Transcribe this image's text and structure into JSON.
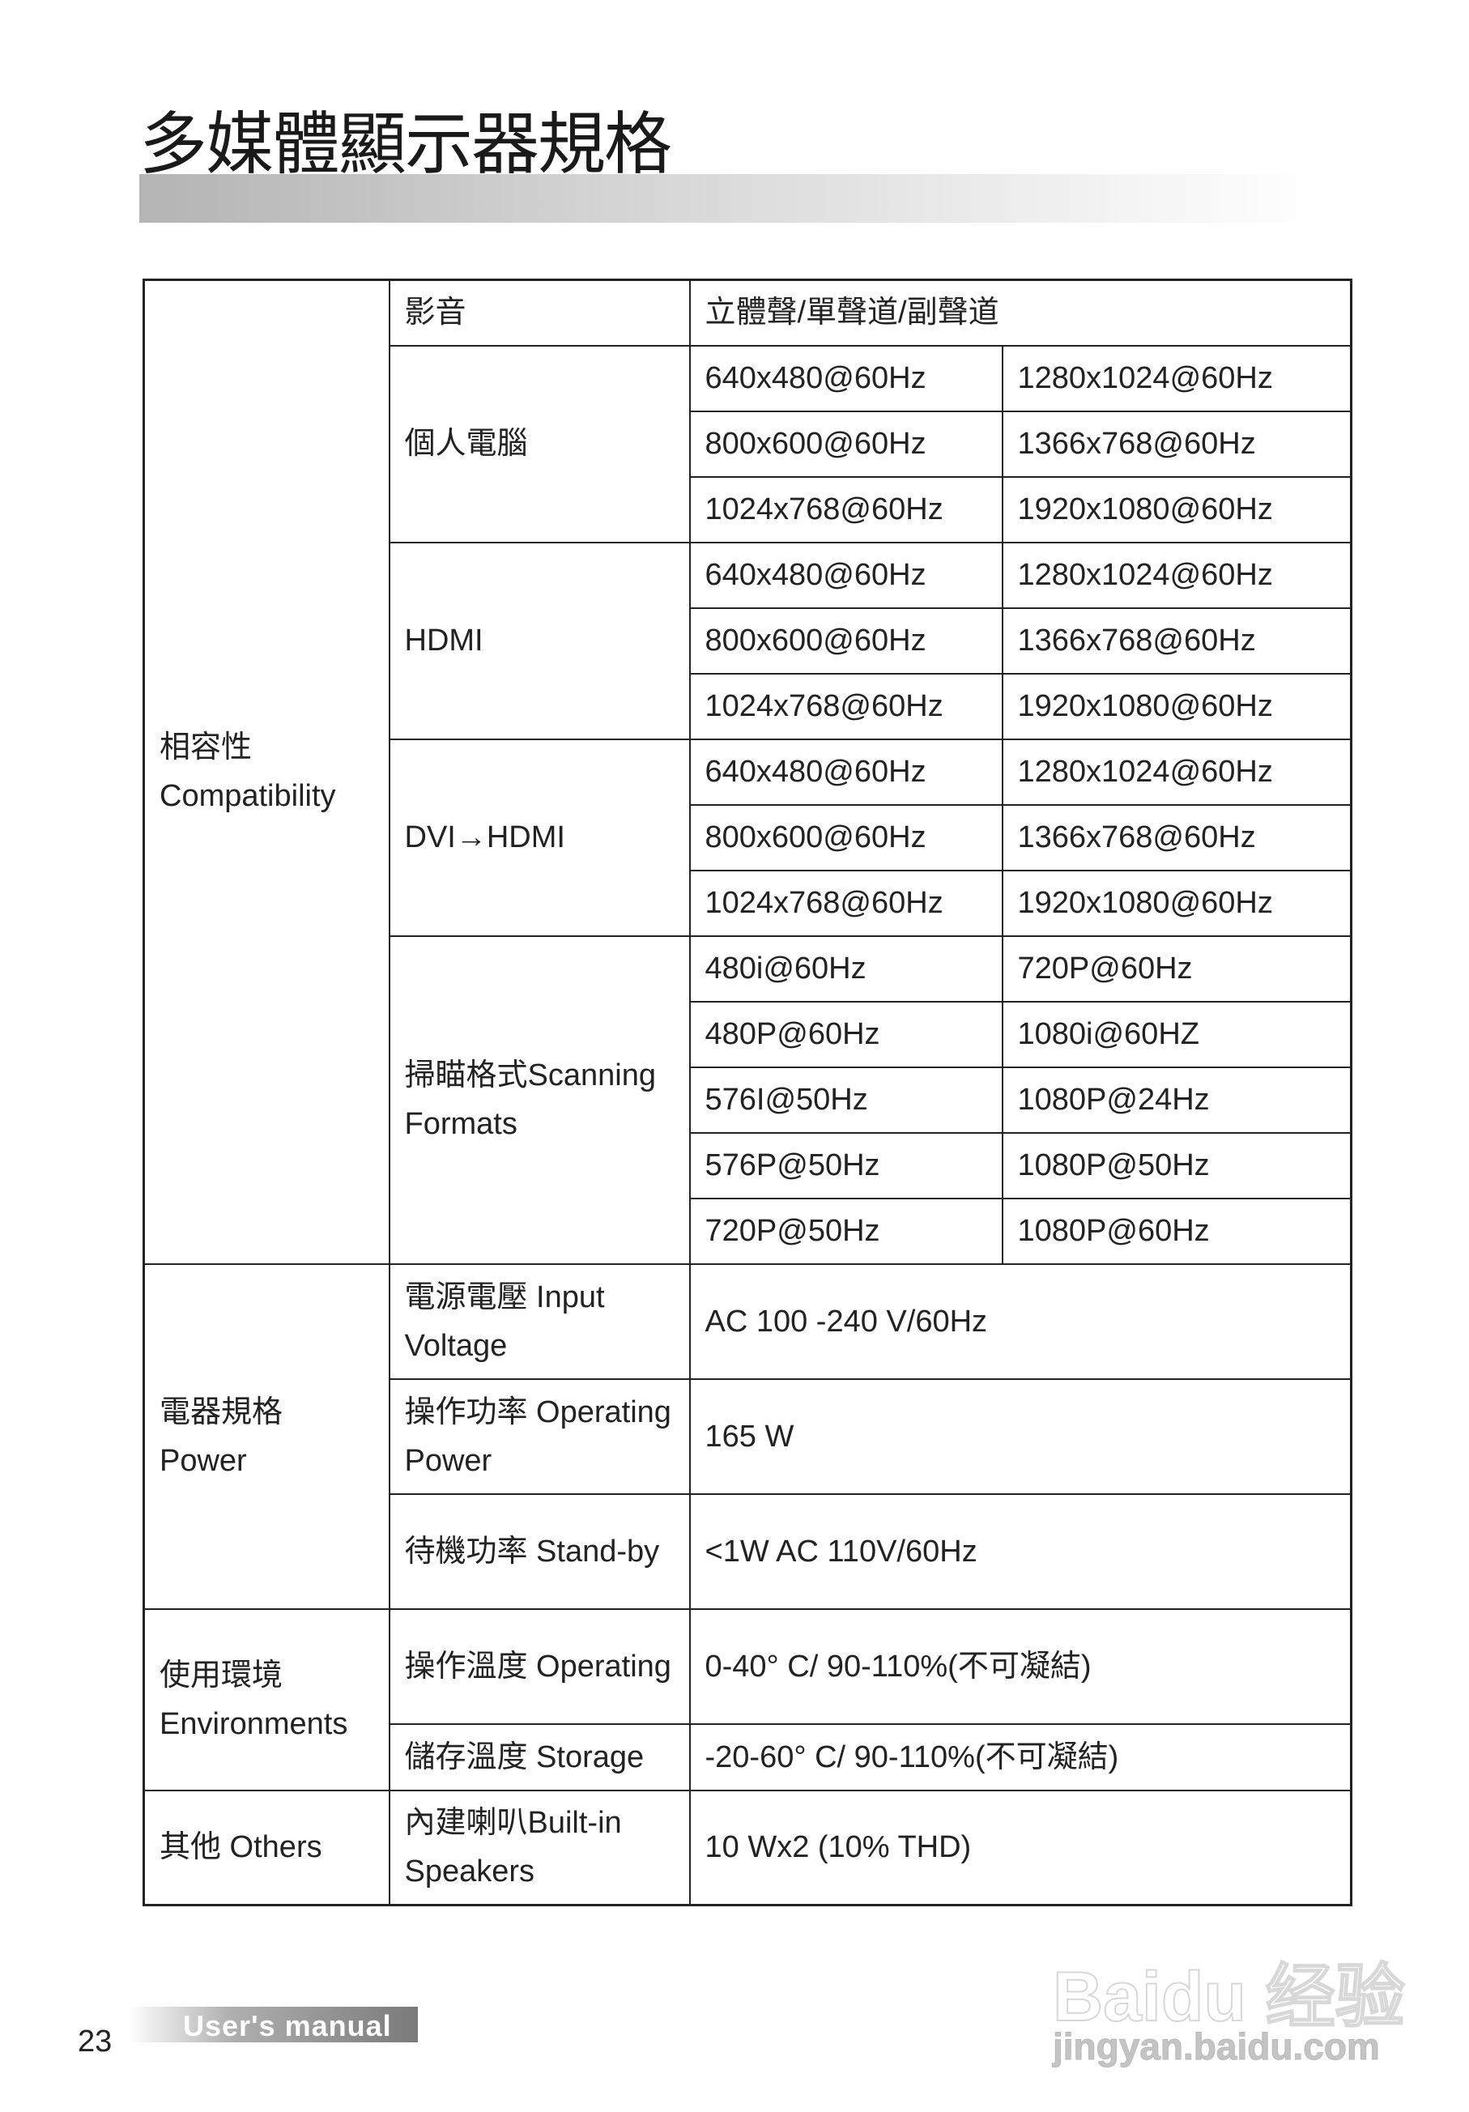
{
  "title": "多媒體顯示器規格",
  "table": {
    "compat_label": [
      "相容性",
      "Compatibility"
    ],
    "audio": {
      "label": "影音",
      "value": "立體聲/單聲道/副聲道"
    },
    "groups": [
      {
        "label": "個人電腦",
        "rows": [
          [
            "640x480@60Hz",
            "1280x1024@60Hz"
          ],
          [
            "800x600@60Hz",
            "1366x768@60Hz"
          ],
          [
            "1024x768@60Hz",
            "1920x1080@60Hz"
          ]
        ]
      },
      {
        "label": "HDMI",
        "rows": [
          [
            "640x480@60Hz",
            "1280x1024@60Hz"
          ],
          [
            "800x600@60Hz",
            "1366x768@60Hz"
          ],
          [
            "1024x768@60Hz",
            "1920x1080@60Hz"
          ]
        ]
      },
      {
        "label": "DVI→HDMI",
        "rows": [
          [
            "640x480@60Hz",
            "1280x1024@60Hz"
          ],
          [
            "800x600@60Hz",
            "1366x768@60Hz"
          ],
          [
            "1024x768@60Hz",
            "1920x1080@60Hz"
          ]
        ]
      },
      {
        "label": "掃瞄格式Scanning Formats",
        "rows": [
          [
            "480i@60Hz",
            "720P@60Hz"
          ],
          [
            "480P@60Hz",
            "1080i@60HZ"
          ],
          [
            "576I@50Hz",
            "1080P@24Hz"
          ],
          [
            "576P@50Hz",
            "1080P@50Hz"
          ],
          [
            "720P@50Hz",
            "1080P@60Hz"
          ]
        ]
      }
    ],
    "power_label": [
      "電器規格",
      "Power"
    ],
    "power": [
      {
        "label": "電源電壓 Input Voltage",
        "value": "AC 100 -240 V/60Hz"
      },
      {
        "label": "操作功率 Operating Power",
        "value": "165 W"
      },
      {
        "label": "待機功率 Stand-by",
        "value": "<1W AC 110V/60Hz"
      }
    ],
    "env_label": [
      "使用環境",
      "Environments"
    ],
    "env": [
      {
        "label": "操作溫度 Operating",
        "value": "0-40° C/ 90-110%(不可凝結)"
      },
      {
        "label": "儲存溫度 Storage",
        "value": "-20-60° C/ 90-110%(不可凝結)"
      }
    ],
    "others_label": "其他 Others",
    "others": {
      "label": "內建喇叭Built-in Speakers",
      "value": "10 Wx2 (10% THD)"
    }
  },
  "footer": {
    "page": "23",
    "label": "User's manual"
  },
  "watermark": {
    "brand": "Bai du 经验",
    "url": "jingyan.baidu.com"
  }
}
